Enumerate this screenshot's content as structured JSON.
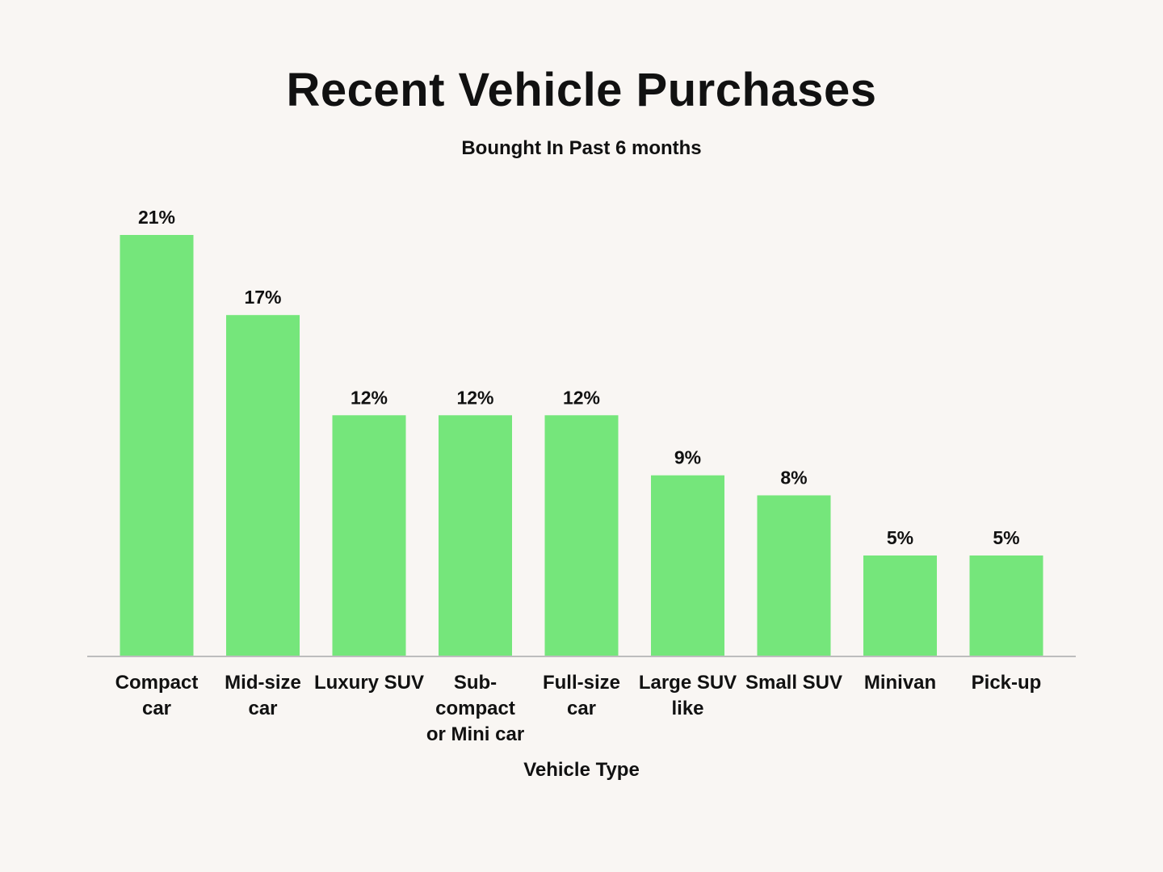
{
  "chart_data": {
    "type": "bar",
    "title": "Recent Vehicle Purchases",
    "subtitle": "Bounght In Past 6 months",
    "xlabel": "Vehicle Type",
    "ylabel": "",
    "categories": [
      [
        "Compact",
        "car"
      ],
      [
        "Mid-size",
        "car"
      ],
      [
        "Luxury SUV"
      ],
      [
        "Sub-",
        "compact",
        "or Mini car"
      ],
      [
        "Full-size",
        "car"
      ],
      [
        "Large SUV",
        "like"
      ],
      [
        "Small SUV"
      ],
      [
        "Minivan"
      ],
      [
        "Pick-up"
      ]
    ],
    "values": [
      21,
      17,
      12,
      12,
      12,
      9,
      8,
      5,
      5
    ],
    "value_labels": [
      "21%",
      "17%",
      "12%",
      "12%",
      "12%",
      "9%",
      "8%",
      "5%",
      "5%"
    ],
    "ylim": [
      0,
      21
    ],
    "grid": false,
    "legend": "none",
    "bar_color": "#75e67b",
    "axis_color": "#bdbdbd"
  }
}
